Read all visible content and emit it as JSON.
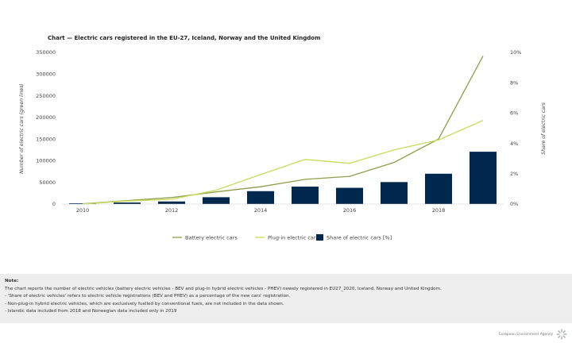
{
  "chart_data": {
    "type": "bar+line",
    "title": "Chart — Electric cars registered in the EU-27, Iceland, Norway and the United Kingdom",
    "x": [
      2010,
      2011,
      2012,
      2013,
      2014,
      2015,
      2016,
      2017,
      2018,
      2019
    ],
    "x_ticks": [
      "2010",
      "2012",
      "2014",
      "2016",
      "2018"
    ],
    "xlim": [
      2010,
      2019
    ],
    "ylabel_left": "Number of electric cars (green lines)",
    "ylabel_right": "Share of electric cars",
    "ylim_left": [
      0,
      350000
    ],
    "ylim_right": [
      0,
      10
    ],
    "y_ticks_left": [
      "0",
      "50000",
      "100000",
      "150000",
      "200000",
      "250000",
      "300000",
      "350000"
    ],
    "y_ticks_right": [
      "0%",
      "2%",
      "4%",
      "6%",
      "8%",
      "10%"
    ],
    "series": [
      {
        "name": "Battery electric cars",
        "type": "line",
        "axis": "left",
        "color": "#8f9e4c",
        "values": [
          600,
          8000,
          15000,
          28000,
          40000,
          57000,
          64000,
          96000,
          150000,
          342000
        ]
      },
      {
        "name": "Plug-in electric cars",
        "type": "line",
        "axis": "left",
        "color": "#c8db5a",
        "values": [
          200,
          7000,
          11000,
          32000,
          68000,
          103000,
          94000,
          125000,
          148000,
          193000
        ]
      },
      {
        "name": "Share of electric cars [%]",
        "type": "bar",
        "axis": "right",
        "color": "#00284f",
        "values": [
          0.05,
          0.1,
          0.17,
          0.45,
          0.85,
          1.15,
          1.07,
          1.45,
          2.0,
          3.45
        ]
      }
    ],
    "legend_position": "bottom",
    "grid": false
  },
  "note": {
    "title": "Note:",
    "lines": [
      "The chart reports the number of electric vehicles (battery electric vehicles - BEV and plug-in hybrid electric vehicles - PHEV) newely registered in EU27_2020, Iceland, Norway and United Kingdom.",
      "- 'Share of electric vehicles' refers to electric vehicle registrations (BEV and PHEV) as a percentage of the new cars' registration.",
      "- Non-plug-in hybrid electric vehicles, which are exclusively fuelled by conventional fuels, are not included in the data shown.",
      "- Islandic data included from 2018 and Norwegian data included only in 2019"
    ]
  },
  "footer": {
    "logo_text": "European Environment Agency",
    "logo_icon": "eea-sunburst-icon"
  }
}
